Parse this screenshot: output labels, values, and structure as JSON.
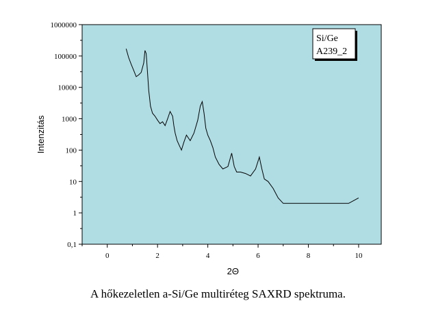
{
  "chart_data": {
    "type": "line",
    "xlabel": "2Θ",
    "ylabel": "Intenzitás",
    "xlim": [
      -1,
      10.9
    ],
    "ylim": [
      0.1,
      1000000
    ],
    "y_scale": "log",
    "x_ticks": [
      0,
      2,
      4,
      6,
      8,
      10
    ],
    "y_ticks": [
      0.1,
      1,
      10,
      100,
      1000,
      10000,
      100000,
      1000000
    ],
    "x_tick_labels": [
      "0",
      "2",
      "4",
      "6",
      "8",
      "10"
    ],
    "y_tick_labels": [
      "0,1",
      "1",
      "10",
      "100",
      "1000",
      "10000",
      "100000",
      "1000000"
    ],
    "legend": {
      "lines": [
        "Si/Ge",
        "A239_2"
      ],
      "placement": "top-right"
    },
    "plot_background": "#b0dce4",
    "line_color": "#000000",
    "grid": false,
    "series": [
      {
        "x": [
          0.75,
          0.85,
          0.95,
          1.05,
          1.15,
          1.25,
          1.35,
          1.45,
          1.5,
          1.55,
          1.6,
          1.65,
          1.72,
          1.8,
          1.9,
          2.0,
          2.1,
          2.2,
          2.3,
          2.4,
          2.5,
          2.6,
          2.65,
          2.7,
          2.78,
          2.85,
          2.95,
          3.05,
          3.15,
          3.3,
          3.45,
          3.6,
          3.7,
          3.78,
          3.85,
          3.92,
          4.0,
          4.1,
          4.2,
          4.3,
          4.45,
          4.6,
          4.8,
          4.95,
          5.05,
          5.15,
          5.3,
          5.5,
          5.7,
          5.9,
          6.05,
          6.15,
          6.25,
          6.4,
          6.6,
          6.8,
          7.0,
          7.3,
          7.6,
          8.0,
          8.4,
          8.8,
          9.2,
          9.6,
          10.0
        ],
        "y": [
          170000,
          90000,
          55000,
          35000,
          22000,
          25000,
          30000,
          60000,
          150000,
          120000,
          30000,
          8000,
          2500,
          1500,
          1200,
          900,
          700,
          800,
          600,
          1000,
          1700,
          1200,
          600,
          350,
          200,
          150,
          100,
          180,
          300,
          200,
          350,
          900,
          2500,
          3500,
          1500,
          500,
          300,
          200,
          120,
          60,
          35,
          25,
          30,
          80,
          30,
          20,
          20,
          18,
          15,
          25,
          60,
          25,
          12,
          10,
          6,
          3,
          2,
          2,
          2,
          2,
          2,
          2,
          2,
          2,
          3
        ]
      }
    ]
  },
  "caption": "A hőkezeletlen a-Si/Ge multiréteg SAXRD spektruma."
}
